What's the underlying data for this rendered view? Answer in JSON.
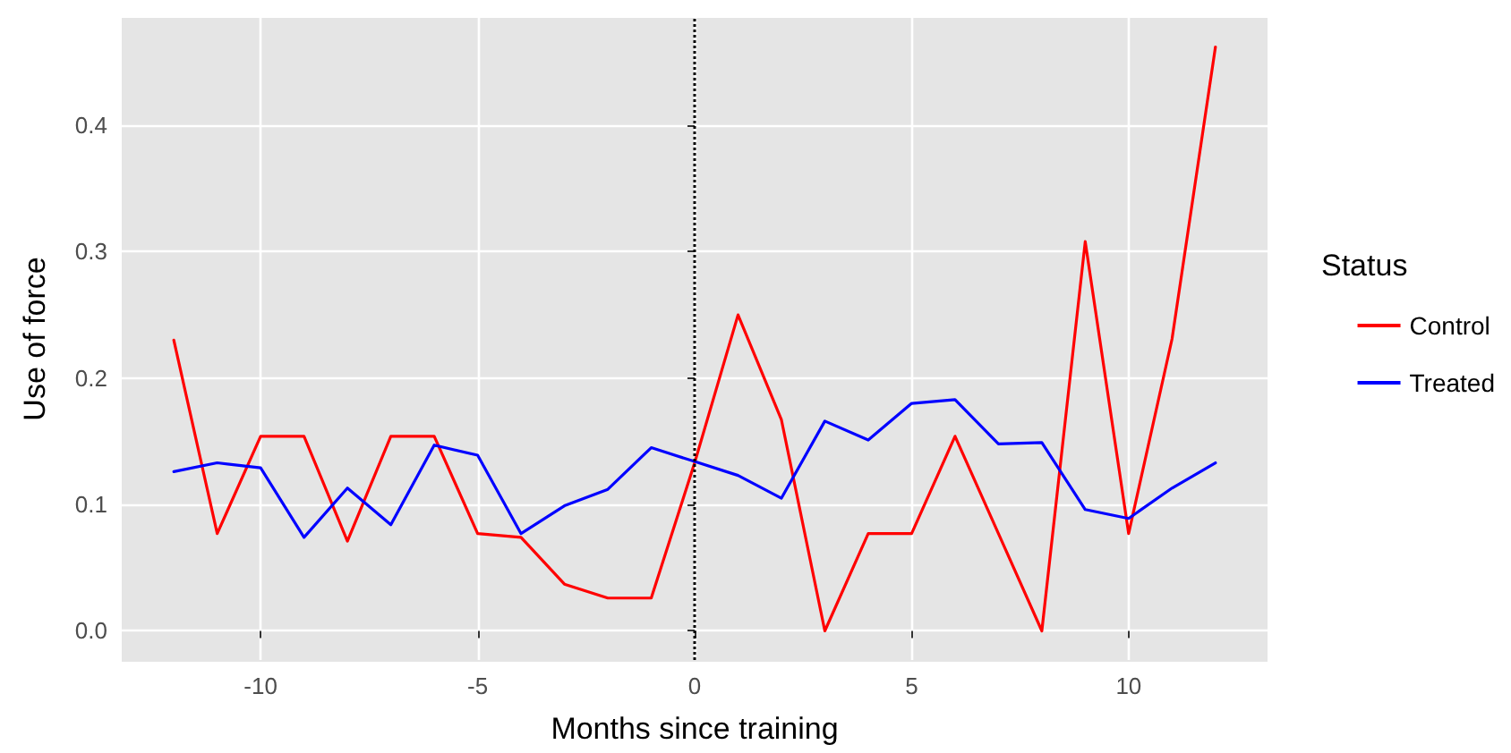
{
  "chart_data": {
    "type": "line",
    "xlabel": "Months since training",
    "ylabel": "Use of force",
    "legend_title": "Status",
    "legend": "right",
    "grid": true,
    "marker": "none",
    "line_style": "solid",
    "x": [
      -12,
      -11,
      -10,
      -9,
      -8,
      -7,
      -6,
      -5,
      -4,
      -3,
      -2,
      -1,
      0,
      1,
      2,
      3,
      4,
      5,
      6,
      7,
      8,
      9,
      10,
      11,
      12
    ],
    "xlim": [
      -13.2,
      13.2
    ],
    "xticks": [
      -10,
      -5,
      0,
      5,
      10
    ],
    "ylim": [
      -0.023,
      0.485
    ],
    "yticks": [
      {
        "value": 0,
        "label": "0.0"
      },
      0.1,
      0.2,
      0.3,
      0.4
    ],
    "series": [
      {
        "name": "Control",
        "color": "#ff0000",
        "values": [
          0.23,
          0.077,
          0.154,
          0.154,
          0.071,
          0.154,
          0.154,
          0.077,
          0.074,
          0.037,
          0.026,
          0.026,
          0.133,
          0.25,
          0.167,
          0,
          0.077,
          0.077,
          0.154,
          0.077,
          0,
          0.308,
          0.077,
          0.231,
          0.462
        ]
      },
      {
        "name": "Treated",
        "color": "#0000ff",
        "values": [
          0.126,
          0.133,
          0.129,
          0.074,
          0.113,
          0.084,
          0.147,
          0.139,
          0.077,
          0.099,
          0.112,
          0.145,
          0.134,
          0.123,
          0.105,
          0.166,
          0.151,
          0.18,
          0.183,
          0.148,
          0.149,
          0.096,
          0.089,
          0.113,
          0.133
        ]
      }
    ],
    "ref_lines": [
      {
        "axis": "x",
        "value": 0,
        "line_style": "dotted",
        "color": "#000000"
      }
    ]
  }
}
